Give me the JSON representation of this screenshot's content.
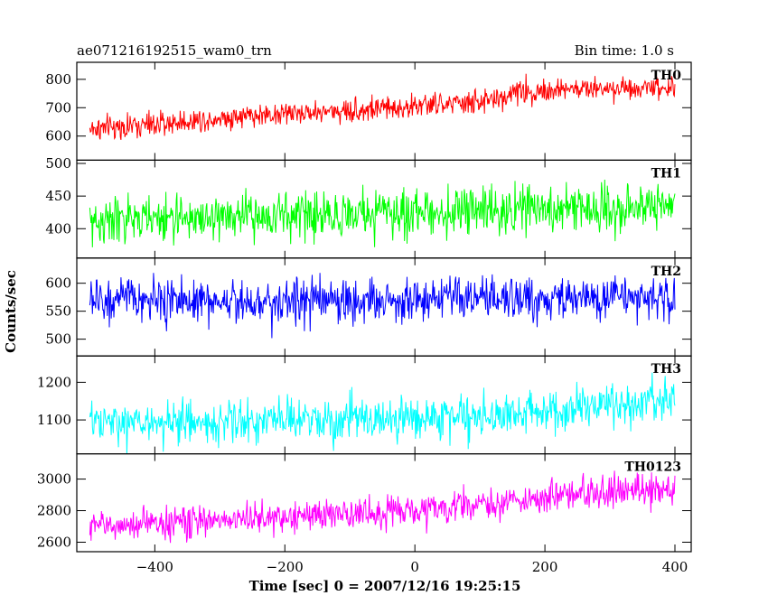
{
  "chart_data": {
    "type": "line",
    "title": "ae071216192515_wam0_trn",
    "subtitle": "Bin time: 1.0 s",
    "xlabel": "Time [sec] 0 = 2007/12/16 19:25:15",
    "ylabel": "Counts/sec",
    "xlim": [
      -520,
      425
    ],
    "x_ticks": [
      -400,
      -200,
      0,
      200,
      400
    ],
    "x_tick_labels": [
      "−400",
      "−200",
      "0",
      "200",
      "400"
    ],
    "bin_seconds": 1.0,
    "x_range_of_data": [
      -500,
      400
    ],
    "panels": [
      {
        "name": "TH0",
        "color": "#ff0000",
        "ylim": [
          515,
          860
        ],
        "yticks": [
          600,
          700,
          800
        ],
        "trend": {
          "x": [
            -500,
            -400,
            -300,
            -200,
            -100,
            0,
            100,
            130,
            150,
            300,
            400
          ],
          "y": [
            625,
            640,
            665,
            680,
            690,
            705,
            720,
            730,
            755,
            770,
            775
          ]
        },
        "noise": 30
      },
      {
        "name": "TH1",
        "color": "#00ff00",
        "ylim": [
          355,
          505
        ],
        "yticks": [
          400,
          450,
          500
        ],
        "trend": {
          "x": [
            -500,
            -400,
            -200,
            0,
            200,
            400
          ],
          "y": [
            410,
            415,
            420,
            425,
            430,
            435
          ]
        },
        "noise": 25
      },
      {
        "name": "TH2",
        "color": "#0000ff",
        "ylim": [
          470,
          645
        ],
        "yticks": [
          500,
          550,
          600
        ],
        "trend": {
          "x": [
            -500,
            -200,
            0,
            200,
            400
          ],
          "y": [
            570,
            568,
            570,
            572,
            575
          ]
        },
        "noise": 28
      },
      {
        "name": "TH3",
        "color": "#00ffff",
        "ylim": [
          1010,
          1270
        ],
        "yticks": [
          1100,
          1200
        ],
        "trend": {
          "x": [
            -500,
            -300,
            -100,
            100,
            250,
            400
          ],
          "y": [
            1090,
            1095,
            1100,
            1110,
            1130,
            1150
          ]
        },
        "noise": 40
      },
      {
        "name": "TH0123",
        "color": "#ff00ff",
        "ylim": [
          2540,
          3160
        ],
        "yticks": [
          2600,
          2800,
          3000
        ],
        "trend": {
          "x": [
            -500,
            -400,
            -200,
            0,
            150,
            300,
            400
          ],
          "y": [
            2700,
            2720,
            2760,
            2800,
            2860,
            2920,
            2940
          ]
        },
        "noise": 70
      }
    ]
  }
}
